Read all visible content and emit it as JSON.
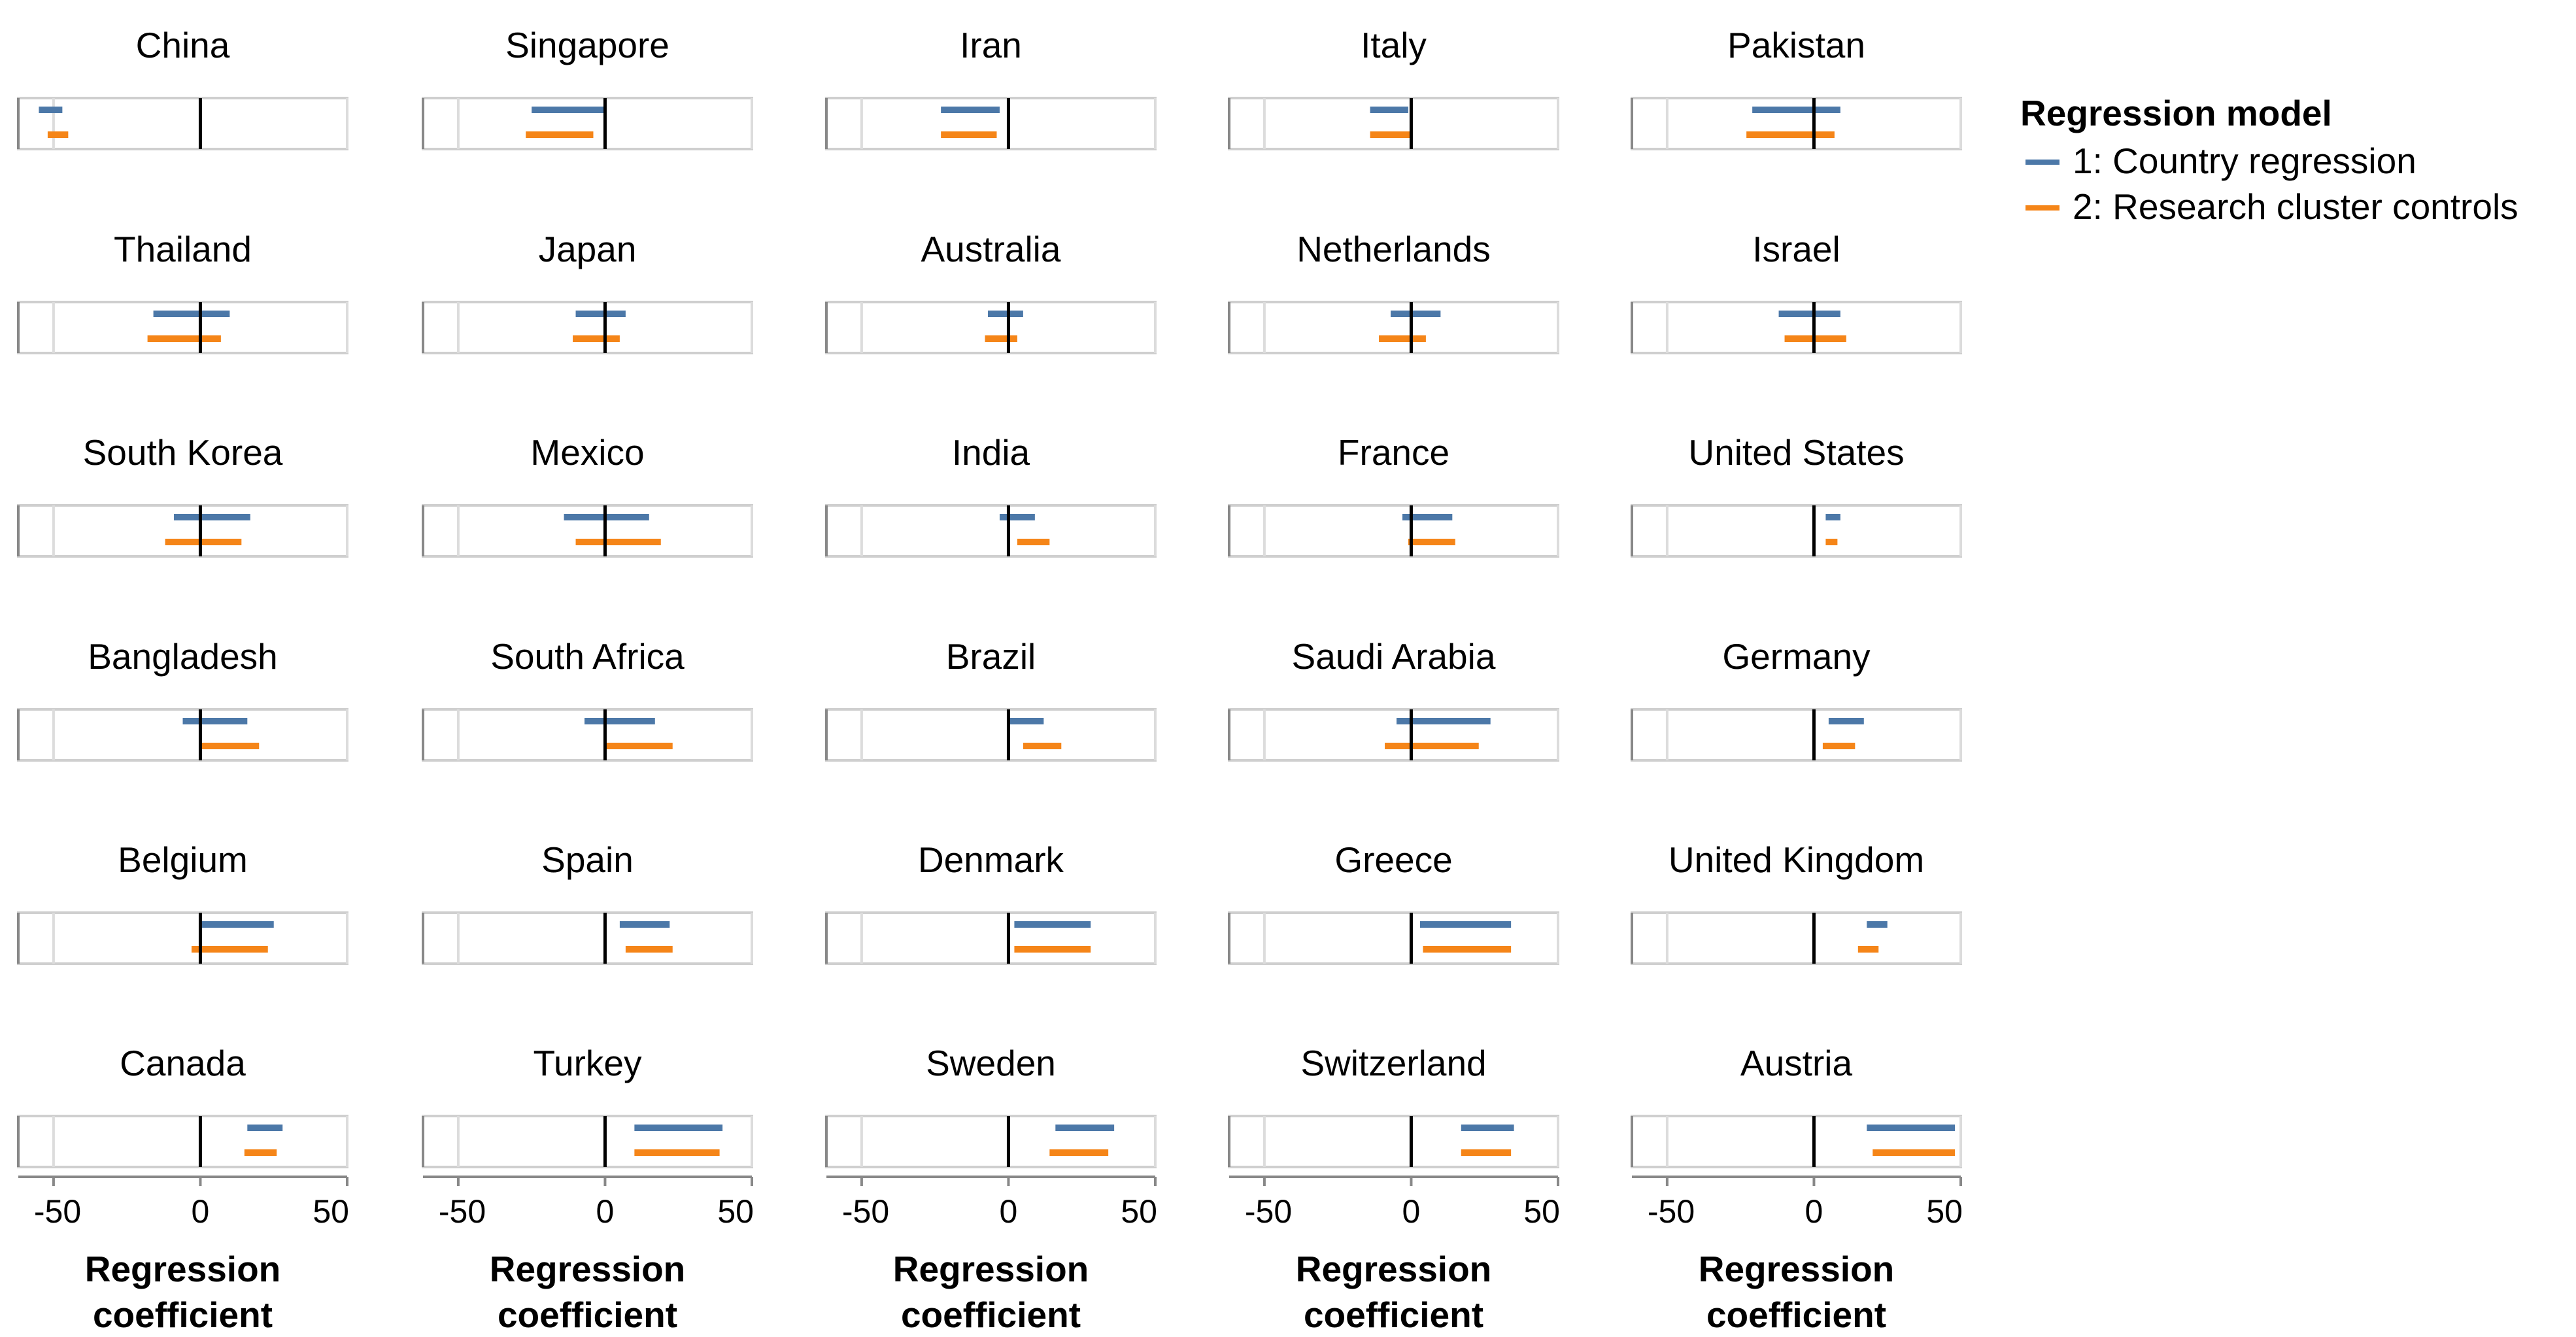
{
  "chart_data": {
    "type": "interval",
    "xlabel_lines": [
      "Regression",
      "coefficient"
    ],
    "xticks": [
      -50,
      0,
      50
    ],
    "xticklabels": [
      "-50",
      "0",
      "50"
    ],
    "xlim": [
      -62,
      50
    ],
    "legend": {
      "title": "Regression model",
      "placement": "right",
      "entries": [
        {
          "name": "1: Country regression",
          "color": "#4c78a8"
        },
        {
          "name": "2: Research cluster controls",
          "color": "#f58518"
        }
      ]
    },
    "panels": [
      {
        "country": "China",
        "intervals": [
          [
            -55,
            -47
          ],
          [
            -52,
            -45
          ]
        ]
      },
      {
        "country": "Singapore",
        "intervals": [
          [
            -25,
            0
          ],
          [
            -27,
            -4
          ]
        ]
      },
      {
        "country": "Iran",
        "intervals": [
          [
            -23,
            -3
          ],
          [
            -23,
            -4
          ]
        ]
      },
      {
        "country": "Italy",
        "intervals": [
          [
            -14,
            -1
          ],
          [
            -14,
            0
          ]
        ]
      },
      {
        "country": "Pakistan",
        "intervals": [
          [
            -21,
            9
          ],
          [
            -23,
            7
          ]
        ]
      },
      {
        "country": "Thailand",
        "intervals": [
          [
            -16,
            10
          ],
          [
            -18,
            7
          ]
        ]
      },
      {
        "country": "Japan",
        "intervals": [
          [
            -10,
            7
          ],
          [
            -11,
            5
          ]
        ]
      },
      {
        "country": "Australia",
        "intervals": [
          [
            -7,
            5
          ],
          [
            -8,
            3
          ]
        ]
      },
      {
        "country": "Netherlands",
        "intervals": [
          [
            -7,
            10
          ],
          [
            -11,
            5
          ]
        ]
      },
      {
        "country": "Israel",
        "intervals": [
          [
            -12,
            9
          ],
          [
            -10,
            11
          ]
        ]
      },
      {
        "country": "South Korea",
        "intervals": [
          [
            -9,
            17
          ],
          [
            -12,
            14
          ]
        ]
      },
      {
        "country": "Mexico",
        "intervals": [
          [
            -14,
            15
          ],
          [
            -10,
            19
          ]
        ]
      },
      {
        "country": "India",
        "intervals": [
          [
            -3,
            9
          ],
          [
            3,
            14
          ]
        ]
      },
      {
        "country": "France",
        "intervals": [
          [
            -3,
            14
          ],
          [
            -1,
            15
          ]
        ]
      },
      {
        "country": "United States",
        "intervals": [
          [
            4,
            9
          ],
          [
            4,
            8
          ]
        ]
      },
      {
        "country": "Bangladesh",
        "intervals": [
          [
            -6,
            16
          ],
          [
            0,
            20
          ]
        ]
      },
      {
        "country": "South Africa",
        "intervals": [
          [
            -7,
            17
          ],
          [
            0,
            23
          ]
        ]
      },
      {
        "country": "Brazil",
        "intervals": [
          [
            0,
            12
          ],
          [
            5,
            18
          ]
        ]
      },
      {
        "country": "Saudi Arabia",
        "intervals": [
          [
            -5,
            27
          ],
          [
            -9,
            23
          ]
        ]
      },
      {
        "country": "Germany",
        "intervals": [
          [
            5,
            17
          ],
          [
            3,
            14
          ]
        ]
      },
      {
        "country": "Belgium",
        "intervals": [
          [
            0,
            25
          ],
          [
            -3,
            23
          ]
        ]
      },
      {
        "country": "Spain",
        "intervals": [
          [
            5,
            22
          ],
          [
            7,
            23
          ]
        ]
      },
      {
        "country": "Denmark",
        "intervals": [
          [
            2,
            28
          ],
          [
            2,
            28
          ]
        ]
      },
      {
        "country": "Greece",
        "intervals": [
          [
            3,
            34
          ],
          [
            4,
            34
          ]
        ]
      },
      {
        "country": "United Kingdom",
        "intervals": [
          [
            18,
            25
          ],
          [
            15,
            22
          ]
        ]
      },
      {
        "country": "Canada",
        "intervals": [
          [
            16,
            28
          ],
          [
            15,
            26
          ]
        ]
      },
      {
        "country": "Turkey",
        "intervals": [
          [
            10,
            40
          ],
          [
            10,
            39
          ]
        ]
      },
      {
        "country": "Sweden",
        "intervals": [
          [
            16,
            36
          ],
          [
            14,
            34
          ]
        ]
      },
      {
        "country": "Switzerland",
        "intervals": [
          [
            17,
            35
          ],
          [
            17,
            34
          ]
        ]
      },
      {
        "country": "Austria",
        "intervals": [
          [
            18,
            48
          ],
          [
            20,
            48
          ]
        ]
      }
    ]
  }
}
